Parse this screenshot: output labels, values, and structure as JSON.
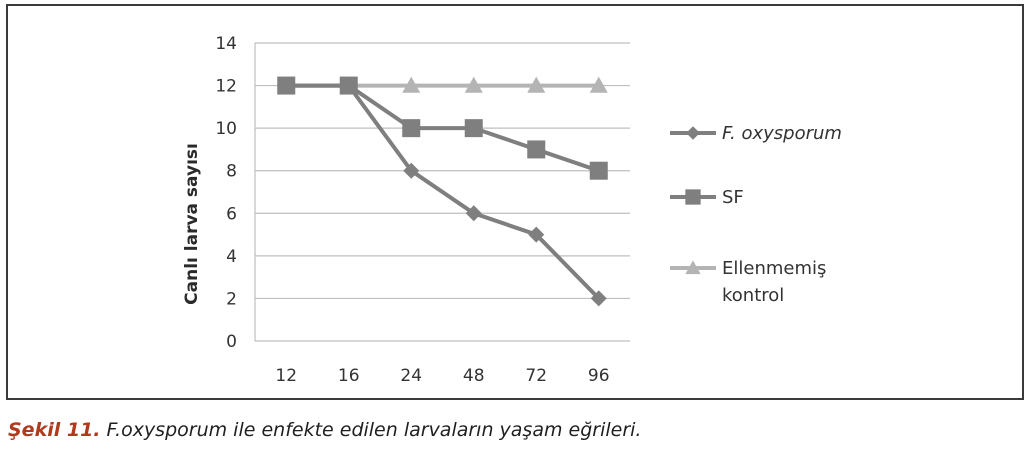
{
  "chart_data": {
    "type": "line",
    "categories": [
      "12",
      "16",
      "24",
      "48",
      "72",
      "96"
    ],
    "ylabel": "Canlı larva sayısı",
    "xlabel": "",
    "ylim": [
      0,
      14
    ],
    "yticks": [
      "0",
      "2",
      "4",
      "6",
      "8",
      "10",
      "12",
      "14"
    ],
    "grid": "horizontal",
    "legend_position": "right",
    "series": [
      {
        "name": "F. oxysporum",
        "marker": "diamond",
        "color": "#7f7f7f",
        "values": [
          12,
          12,
          8,
          6,
          5,
          2
        ]
      },
      {
        "name": "SF",
        "marker": "square",
        "color": "#7f7f7f",
        "values": [
          12,
          12,
          10,
          10,
          9,
          8
        ]
      },
      {
        "name": "Ellenmemiş kontrol",
        "marker": "triangle",
        "color": "#b4b4b4",
        "values": [
          12,
          12,
          12,
          12,
          12,
          12
        ]
      }
    ]
  },
  "caption": {
    "lead": "Şekil 11.",
    "text": " F.oxysporum ile enfekte edilen larvaların yaşam eğrileri."
  }
}
